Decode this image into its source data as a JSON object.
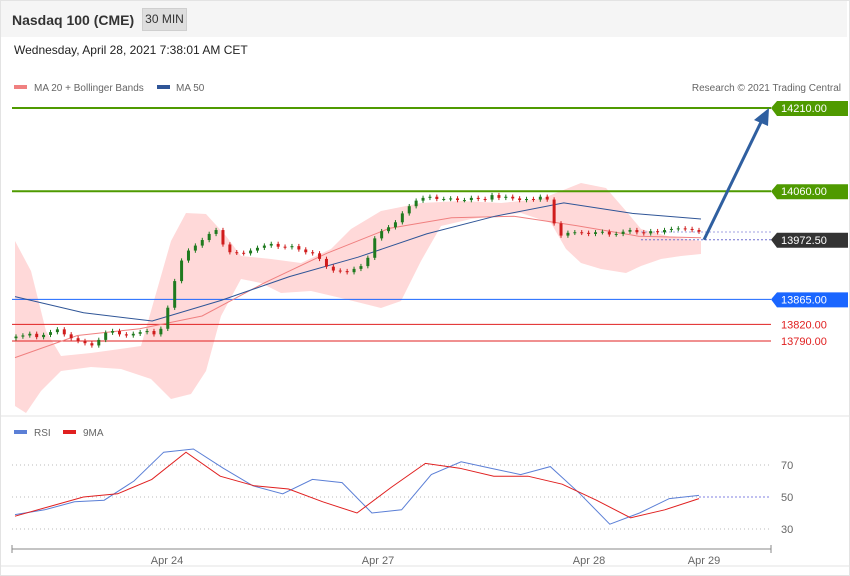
{
  "header": {
    "instrument": "Nasdaq 100 (CME)",
    "timeframe": "30 MIN",
    "datetime": "Wednesday, April 28, 2021 7:38:01 AM CET"
  },
  "main_chart": {
    "legend": [
      {
        "label": "MA 20 + Bollinger Bands",
        "color": "#f08080"
      },
      {
        "label": "MA 50",
        "color": "#2f5597"
      }
    ],
    "credit": "Research © 2021 Trading Central",
    "levels": [
      {
        "value": 14210.0,
        "label": "14210.00",
        "color": "#4f9a00",
        "style": "tag"
      },
      {
        "value": 14060.0,
        "label": "14060.00",
        "color": "#4f9a00",
        "style": "tag"
      },
      {
        "value": 13972.5,
        "label": "13972.50",
        "color": "#333333",
        "style": "tag"
      },
      {
        "value": 13865.0,
        "label": "13865.00",
        "color": "#1a66ff",
        "style": "tag"
      },
      {
        "value": 13820.0,
        "label": "13820.00",
        "color": "#e02020",
        "style": "text"
      },
      {
        "value": 13790.0,
        "label": "13790.00",
        "color": "#e02020",
        "style": "text"
      }
    ],
    "arrow": {
      "from": 13972.5,
      "to": 14210.0,
      "color": "#2f5fa0"
    }
  },
  "rsi_panel": {
    "legend": [
      {
        "label": "RSI",
        "color": "#5b7fd6"
      },
      {
        "label": "9MA",
        "color": "#e02020"
      }
    ],
    "levels": [
      "70",
      "50",
      "30"
    ]
  },
  "x_axis": {
    "labels": [
      "Apr 24",
      "Apr 27",
      "Apr 28",
      "Apr 29"
    ]
  },
  "colors": {
    "up": "#1f7a1f",
    "down": "#d01c1c",
    "band": "#ffd9d9"
  },
  "chart_data": {
    "type": "candlestick",
    "title": "Nasdaq 100 (CME)",
    "xlabel": "",
    "ylabel": "",
    "ylim": [
      13700,
      14240
    ],
    "series": [
      {
        "name": "Price",
        "close": [
          13798,
          13800,
          13803,
          13797,
          13801,
          13806,
          13811,
          13802,
          13795,
          13790,
          13786,
          13782,
          13792,
          13805,
          13808,
          13802,
          13800,
          13803,
          13806,
          13808,
          13802,
          13812,
          13850,
          13898,
          13935,
          13953,
          13962,
          13972,
          13983,
          13990,
          13964,
          13950,
          13949,
          13948,
          13953,
          13958,
          13962,
          13965,
          13960,
          13959,
          13961,
          13955,
          13950,
          13948,
          13938,
          13924,
          13917,
          13916,
          13914,
          13920,
          13925,
          13940,
          13975,
          13988,
          13995,
          14004,
          14020,
          14033,
          14043,
          14048,
          14050,
          14046,
          14046,
          14047,
          14044,
          14044,
          14048,
          14046,
          14045,
          14053,
          14048,
          14050,
          14047,
          14044,
          14046,
          14045,
          14050,
          14045,
          14002,
          13980,
          13985,
          13986,
          13985,
          13983,
          13986,
          13987,
          13982,
          13983,
          13987,
          13990,
          13986,
          13984,
          13988,
          13986,
          13990,
          13992,
          13993,
          13992,
          13990,
          13987
        ]
      },
      {
        "name": "MA 20",
        "values": [
          13760,
          13800,
          13812,
          13835,
          13895,
          13948,
          13993,
          14012,
          14015,
          13998,
          13979,
          13976
        ]
      },
      {
        "name": "MA 50",
        "values": [
          13870,
          13841,
          13826,
          13863,
          13906,
          13941,
          13983,
          14015,
          14039,
          14020,
          14010
        ]
      },
      {
        "name": "RSI",
        "values": [
          39,
          42,
          47,
          48,
          60,
          78,
          80,
          68,
          57,
          52,
          61,
          59,
          40,
          42,
          64,
          72,
          68,
          64,
          69,
          52,
          33,
          40,
          49,
          51
        ]
      },
      {
        "name": "9MA",
        "values": [
          38,
          44,
          50,
          52,
          61,
          78,
          63,
          57,
          55,
          47,
          40,
          56,
          71,
          68,
          63,
          63,
          58,
          48,
          37,
          42,
          49
        ]
      }
    ],
    "rsi_ylim": [
      20,
      85
    ]
  }
}
